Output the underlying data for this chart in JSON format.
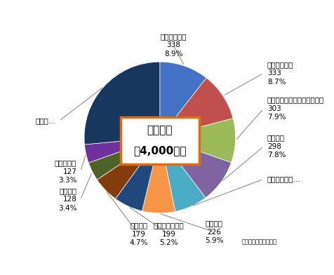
{
  "labels": [
    "シンジェンタ",
    "日産化学工業",
    "バイエルクロップサイエンス",
    "住友化学",
    "クミアイ化学...",
    "北興化学",
    "三井化学アグロ",
    "日本農薬",
    "日本曹達",
    "協友アグリ",
    "その他..."
  ],
  "values": [
    338,
    333,
    303,
    298,
    226,
    226,
    199,
    179,
    128,
    127,
    849
  ],
  "percentages": [
    "8.9%",
    "8.7%",
    "7.9%",
    "7.8%",
    "",
    "5.9%",
    "5.2%",
    "4.7%",
    "3.4%",
    "3.3%",
    ""
  ],
  "sub_values": [
    "338",
    "333",
    "303",
    "298",
    "",
    "226",
    "199",
    "179",
    "128",
    "127",
    ""
  ],
  "colors": [
    "#4472C4",
    "#C0504D",
    "#9BBB59",
    "#8064A2",
    "#4BACC6",
    "#F79646",
    "#1F497D",
    "#843C0C",
    "#4F6228",
    "#7030A0",
    "#17375E"
  ],
  "center_text_line1": "市場規模",
  "center_text_line2": "約4,000億円",
  "source_text": "資料：農林水産省調べ",
  "fig_bg": "#ffffff",
  "center_box_facecolor": "#ffffff",
  "center_box_edgecolor": "#E36C09",
  "label_positions": [
    [
      0.18,
      1.22,
      "center"
    ],
    [
      1.42,
      0.85,
      "left"
    ],
    [
      1.42,
      0.38,
      "left"
    ],
    [
      1.42,
      -0.12,
      "left"
    ],
    [
      1.42,
      -0.55,
      "left"
    ],
    [
      0.72,
      -1.25,
      "center"
    ],
    [
      0.12,
      -1.28,
      "center"
    ],
    [
      -0.28,
      -1.28,
      "center"
    ],
    [
      -1.1,
      -0.82,
      "right"
    ],
    [
      -1.1,
      -0.45,
      "right"
    ],
    [
      -1.38,
      0.22,
      "right"
    ]
  ]
}
